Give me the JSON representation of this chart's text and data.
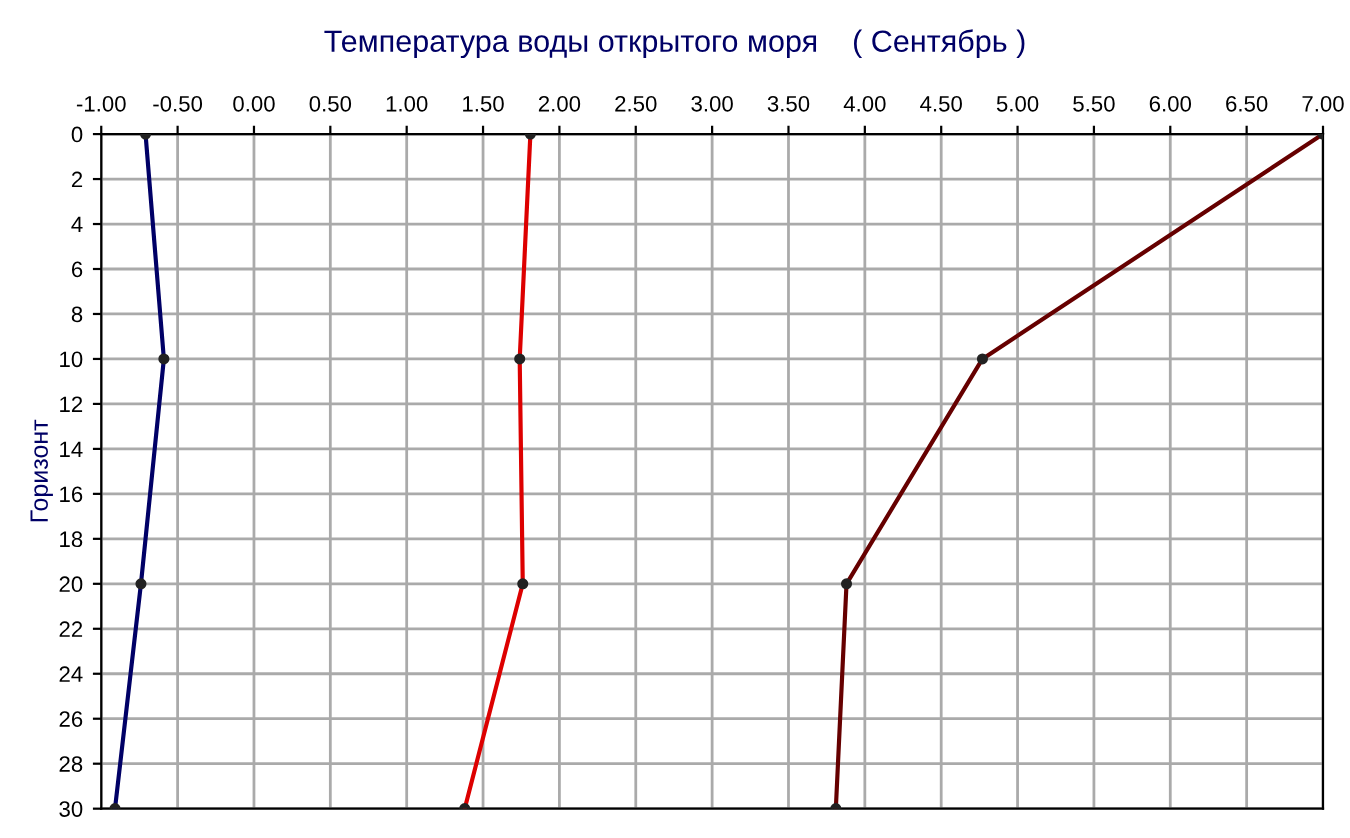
{
  "chart_data": {
    "type": "line",
    "title": "Температура воды открытого моря    ( Сентябрь )",
    "ylabel": "Горизонт",
    "series": [
      {
        "color": "#000066",
        "x": [
          -0.71,
          -0.59,
          -0.74,
          -0.91
        ],
        "values": [
          0,
          10,
          20,
          30
        ]
      },
      {
        "color": "#dd0000",
        "x": [
          1.81,
          1.74,
          1.76,
          1.38
        ],
        "values": [
          0,
          10,
          20,
          30
        ]
      },
      {
        "color": "#660000",
        "x": [
          7.0,
          4.77,
          3.88,
          3.81
        ],
        "values": [
          0,
          10,
          20,
          30
        ]
      }
    ],
    "xlim": [
      -1.0,
      7.0
    ],
    "xticks": [
      {
        "value": -1,
        "label": "-1.00"
      },
      {
        "value": -0.5,
        "label": "-0.50"
      },
      {
        "value": 0,
        "label": "0.00"
      },
      {
        "value": 0.5,
        "label": "0.50"
      },
      {
        "value": 1,
        "label": "1.00"
      },
      {
        "value": 1.5,
        "label": "1.50"
      },
      {
        "value": 2,
        "label": "2.00"
      },
      {
        "value": 2.5,
        "label": "2.50"
      },
      {
        "value": 3,
        "label": "3.00"
      },
      {
        "value": 3.5,
        "label": "3.50"
      },
      {
        "value": 4,
        "label": "4.00"
      },
      {
        "value": 4.5,
        "label": "4.50"
      },
      {
        "value": 5,
        "label": "5.00"
      },
      {
        "value": 5.5,
        "label": "5.50"
      },
      {
        "value": 6,
        "label": "6.00"
      },
      {
        "value": 6.5,
        "label": "6.50"
      },
      {
        "value": 7,
        "label": "7.00"
      }
    ],
    "ylim": [
      30,
      0
    ],
    "yticks": [
      0,
      2,
      4,
      6,
      8,
      10,
      12,
      14,
      16,
      18,
      20,
      22,
      24,
      26,
      28,
      30
    ],
    "grid": true,
    "marker": "circle",
    "line_style": "solid"
  }
}
